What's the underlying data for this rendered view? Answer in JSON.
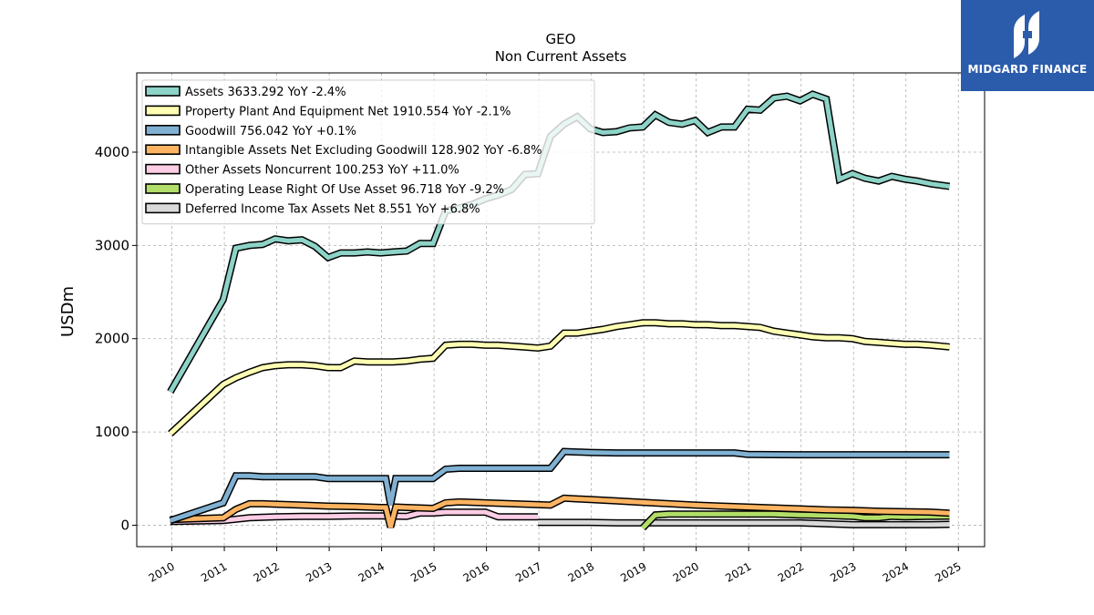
{
  "brand": {
    "name": "MIDGARD FINANCE",
    "bg_color": "#2b5bab"
  },
  "chart_data": {
    "type": "line",
    "title": "GEO",
    "subtitle": "Non Current  Assets",
    "xlabel": "",
    "ylabel": "USDm",
    "xlim": [
      2009.33,
      2025.5
    ],
    "ylim": [
      -230,
      4850
    ],
    "x_ticks": [
      2010,
      2011,
      2012,
      2013,
      2014,
      2015,
      2016,
      2017,
      2018,
      2019,
      2020,
      2021,
      2022,
      2023,
      2024,
      2025
    ],
    "y_ticks": [
      0,
      1000,
      2000,
      3000,
      4000
    ],
    "grid": true,
    "legend_position": "top-left",
    "series": [
      {
        "name": "Assets  3633.292 YoY -2.4%",
        "color": "#8dd3c7",
        "points": [
          [
            2009.97,
            1430
          ],
          [
            2010.98,
            2420
          ],
          [
            2011.22,
            2970
          ],
          [
            2011.48,
            3000
          ],
          [
            2011.73,
            3010
          ],
          [
            2011.97,
            3070
          ],
          [
            2012.22,
            3050
          ],
          [
            2012.48,
            3060
          ],
          [
            2012.73,
            2990
          ],
          [
            2012.98,
            2870
          ],
          [
            2013.22,
            2920
          ],
          [
            2013.48,
            2920
          ],
          [
            2013.73,
            2930
          ],
          [
            2013.98,
            2920
          ],
          [
            2014.22,
            2930
          ],
          [
            2014.48,
            2940
          ],
          [
            2014.73,
            3020
          ],
          [
            2014.98,
            3020
          ],
          [
            2015.22,
            3370
          ],
          [
            2015.48,
            3400
          ],
          [
            2015.73,
            3440
          ],
          [
            2015.98,
            3500
          ],
          [
            2016.22,
            3540
          ],
          [
            2016.48,
            3600
          ],
          [
            2016.73,
            3760
          ],
          [
            2016.98,
            3770
          ],
          [
            2017.22,
            4170
          ],
          [
            2017.48,
            4300
          ],
          [
            2017.73,
            4380
          ],
          [
            2017.98,
            4250
          ],
          [
            2018.22,
            4210
          ],
          [
            2018.48,
            4220
          ],
          [
            2018.73,
            4260
          ],
          [
            2018.98,
            4270
          ],
          [
            2019.22,
            4400
          ],
          [
            2019.48,
            4320
          ],
          [
            2019.73,
            4300
          ],
          [
            2019.98,
            4340
          ],
          [
            2020.22,
            4210
          ],
          [
            2020.48,
            4270
          ],
          [
            2020.73,
            4270
          ],
          [
            2020.98,
            4460
          ],
          [
            2021.22,
            4450
          ],
          [
            2021.48,
            4580
          ],
          [
            2021.73,
            4600
          ],
          [
            2021.98,
            4550
          ],
          [
            2022.22,
            4620
          ],
          [
            2022.48,
            4570
          ],
          [
            2022.73,
            3710
          ],
          [
            2022.98,
            3770
          ],
          [
            2023.22,
            3720
          ],
          [
            2023.48,
            3690
          ],
          [
            2023.73,
            3740
          ],
          [
            2023.98,
            3710
          ],
          [
            2024.22,
            3690
          ],
          [
            2024.48,
            3660
          ],
          [
            2024.83,
            3633
          ]
        ]
      },
      {
        "name": "Property Plant And Equipment Net  1910.554 YoY -2.1%",
        "color": "#ffffb3",
        "points": [
          [
            2009.97,
            980
          ],
          [
            2010.98,
            1510
          ],
          [
            2011.22,
            1580
          ],
          [
            2011.48,
            1640
          ],
          [
            2011.73,
            1690
          ],
          [
            2011.97,
            1710
          ],
          [
            2012.22,
            1720
          ],
          [
            2012.48,
            1720
          ],
          [
            2012.73,
            1710
          ],
          [
            2012.98,
            1690
          ],
          [
            2013.22,
            1690
          ],
          [
            2013.48,
            1760
          ],
          [
            2013.73,
            1750
          ],
          [
            2013.98,
            1750
          ],
          [
            2014.22,
            1750
          ],
          [
            2014.48,
            1760
          ],
          [
            2014.73,
            1780
          ],
          [
            2014.98,
            1790
          ],
          [
            2015.22,
            1930
          ],
          [
            2015.48,
            1940
          ],
          [
            2015.73,
            1940
          ],
          [
            2015.98,
            1930
          ],
          [
            2016.22,
            1930
          ],
          [
            2016.48,
            1920
          ],
          [
            2016.73,
            1910
          ],
          [
            2016.98,
            1900
          ],
          [
            2017.22,
            1920
          ],
          [
            2017.48,
            2060
          ],
          [
            2017.73,
            2060
          ],
          [
            2017.98,
            2080
          ],
          [
            2018.22,
            2100
          ],
          [
            2018.48,
            2130
          ],
          [
            2018.73,
            2150
          ],
          [
            2018.98,
            2170
          ],
          [
            2019.22,
            2170
          ],
          [
            2019.48,
            2160
          ],
          [
            2019.73,
            2160
          ],
          [
            2019.98,
            2150
          ],
          [
            2020.22,
            2150
          ],
          [
            2020.48,
            2140
          ],
          [
            2020.73,
            2140
          ],
          [
            2020.98,
            2130
          ],
          [
            2021.22,
            2120
          ],
          [
            2021.48,
            2080
          ],
          [
            2021.73,
            2060
          ],
          [
            2021.98,
            2040
          ],
          [
            2022.22,
            2020
          ],
          [
            2022.48,
            2010
          ],
          [
            2022.73,
            2010
          ],
          [
            2022.98,
            2000
          ],
          [
            2023.22,
            1970
          ],
          [
            2023.48,
            1960
          ],
          [
            2023.73,
            1950
          ],
          [
            2023.98,
            1940
          ],
          [
            2024.22,
            1940
          ],
          [
            2024.48,
            1930
          ],
          [
            2024.83,
            1911
          ]
        ]
      },
      {
        "name": "Goodwill  756.042 YoY +0.1%",
        "color": "#80b1d3",
        "points": [
          [
            2009.97,
            50
          ],
          [
            2010.98,
            240
          ],
          [
            2011.22,
            530
          ],
          [
            2011.48,
            530
          ],
          [
            2011.73,
            520
          ],
          [
            2011.97,
            520
          ],
          [
            2012.22,
            520
          ],
          [
            2012.48,
            520
          ],
          [
            2012.73,
            520
          ],
          [
            2012.98,
            500
          ],
          [
            2013.22,
            500
          ],
          [
            2013.48,
            500
          ],
          [
            2013.73,
            500
          ],
          [
            2013.98,
            500
          ],
          [
            2014.08,
            500
          ],
          [
            2014.17,
            220
          ],
          [
            2014.27,
            500
          ],
          [
            2014.48,
            500
          ],
          [
            2014.73,
            500
          ],
          [
            2014.98,
            500
          ],
          [
            2015.22,
            600
          ],
          [
            2015.48,
            610
          ],
          [
            2015.73,
            610
          ],
          [
            2015.98,
            610
          ],
          [
            2016.22,
            610
          ],
          [
            2016.48,
            610
          ],
          [
            2016.73,
            610
          ],
          [
            2016.98,
            610
          ],
          [
            2017.22,
            610
          ],
          [
            2017.48,
            790
          ],
          [
            2017.73,
            785
          ],
          [
            2017.98,
            780
          ],
          [
            2018.48,
            775
          ],
          [
            2018.98,
            775
          ],
          [
            2019.48,
            775
          ],
          [
            2019.98,
            775
          ],
          [
            2020.48,
            775
          ],
          [
            2020.73,
            775
          ],
          [
            2020.98,
            760
          ],
          [
            2021.48,
            757
          ],
          [
            2021.98,
            756
          ],
          [
            2022.48,
            756
          ],
          [
            2022.98,
            756
          ],
          [
            2023.48,
            756
          ],
          [
            2023.98,
            756
          ],
          [
            2024.48,
            756
          ],
          [
            2024.83,
            756
          ]
        ]
      },
      {
        "name": "Intangible Assets Net Excluding Goodwill  128.902 YoY -6.8%",
        "color": "#fdb462",
        "points": [
          [
            2009.97,
            60
          ],
          [
            2010.98,
            80
          ],
          [
            2011.22,
            170
          ],
          [
            2011.48,
            230
          ],
          [
            2011.73,
            230
          ],
          [
            2011.97,
            225
          ],
          [
            2012.48,
            215
          ],
          [
            2012.98,
            205
          ],
          [
            2013.48,
            200
          ],
          [
            2013.98,
            190
          ],
          [
            2014.08,
            190
          ],
          [
            2014.17,
            -20
          ],
          [
            2014.27,
            195
          ],
          [
            2014.48,
            190
          ],
          [
            2014.98,
            180
          ],
          [
            2015.22,
            240
          ],
          [
            2015.48,
            250
          ],
          [
            2015.98,
            240
          ],
          [
            2016.48,
            230
          ],
          [
            2016.98,
            220
          ],
          [
            2017.22,
            215
          ],
          [
            2017.48,
            290
          ],
          [
            2017.98,
            275
          ],
          [
            2018.48,
            260
          ],
          [
            2018.98,
            245
          ],
          [
            2019.48,
            230
          ],
          [
            2019.98,
            215
          ],
          [
            2020.48,
            205
          ],
          [
            2020.98,
            195
          ],
          [
            2021.48,
            185
          ],
          [
            2021.98,
            175
          ],
          [
            2022.48,
            165
          ],
          [
            2022.98,
            160
          ],
          [
            2023.48,
            150
          ],
          [
            2023.98,
            145
          ],
          [
            2024.48,
            140
          ],
          [
            2024.83,
            129
          ]
        ]
      },
      {
        "name": "Other Assets Noncurrent  100.253 YoY +11.0%",
        "color": "#fccde5",
        "points": [
          [
            2009.97,
            40
          ],
          [
            2010.98,
            50
          ],
          [
            2011.48,
            80
          ],
          [
            2011.98,
            90
          ],
          [
            2012.48,
            95
          ],
          [
            2012.98,
            95
          ],
          [
            2013.48,
            100
          ],
          [
            2013.98,
            100
          ],
          [
            2014.48,
            95
          ],
          [
            2014.73,
            130
          ],
          [
            2014.98,
            130
          ],
          [
            2015.22,
            140
          ],
          [
            2015.48,
            140
          ],
          [
            2015.98,
            140
          ],
          [
            2016.22,
            90
          ],
          [
            2016.48,
            90
          ],
          [
            2016.98,
            90
          ]
        ]
      },
      {
        "name": "Operating Lease Right Of Use Asset  96.718 YoY -9.2%",
        "color": "#b3de69",
        "points": [
          [
            2018.98,
            -30
          ],
          [
            2019.22,
            110
          ],
          [
            2019.48,
            120
          ],
          [
            2019.98,
            120
          ],
          [
            2020.48,
            120
          ],
          [
            2020.98,
            120
          ],
          [
            2021.48,
            120
          ],
          [
            2021.98,
            110
          ],
          [
            2022.48,
            105
          ],
          [
            2022.98,
            95
          ],
          [
            2023.22,
            80
          ],
          [
            2023.48,
            80
          ],
          [
            2023.73,
            95
          ],
          [
            2023.98,
            90
          ],
          [
            2024.48,
            95
          ],
          [
            2024.83,
            97
          ]
        ]
      },
      {
        "name": "Deferred Income Tax Assets Net  8.551 YoY +6.8%",
        "color": "#d9d9d9",
        "points": [
          [
            2016.98,
            30
          ],
          [
            2017.48,
            30
          ],
          [
            2017.98,
            30
          ],
          [
            2018.48,
            25
          ],
          [
            2018.98,
            25
          ],
          [
            2019.48,
            25
          ],
          [
            2019.98,
            25
          ],
          [
            2020.48,
            25
          ],
          [
            2020.98,
            25
          ],
          [
            2021.48,
            25
          ],
          [
            2021.98,
            25
          ],
          [
            2022.48,
            15
          ],
          [
            2022.98,
            5
          ],
          [
            2023.48,
            5
          ],
          [
            2023.98,
            5
          ],
          [
            2024.48,
            5
          ],
          [
            2024.83,
            9
          ]
        ]
      }
    ]
  }
}
